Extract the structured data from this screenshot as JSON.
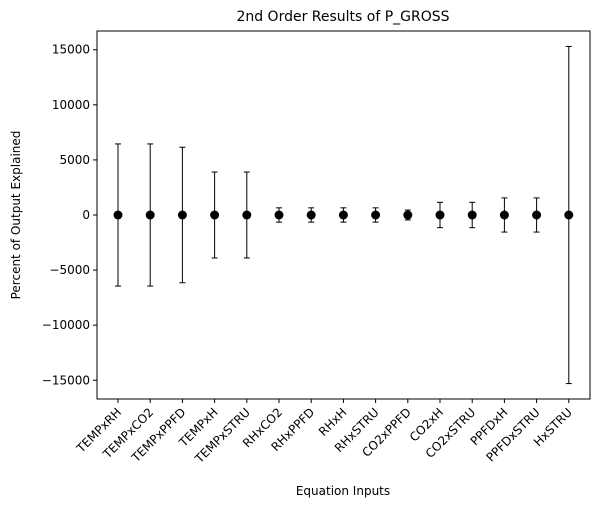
{
  "chart_data": {
    "type": "scatter",
    "title": "2nd Order Results of P_GROSS",
    "xlabel": "Equation Inputs",
    "ylabel": "Percent of Output Explained",
    "ylim": [
      -16700,
      16700
    ],
    "y_ticks": [
      -15000,
      -10000,
      -5000,
      0,
      5000,
      10000,
      15000
    ],
    "y_tick_labels": [
      "−15000",
      "−10000",
      "−5000",
      "0",
      "5000",
      "10000",
      "15000"
    ],
    "grid": false,
    "legend": "none",
    "marker_color": "#000000",
    "categories": [
      "TEMPxRH",
      "TEMPxCO2",
      "TEMPxPPFD",
      "TEMPxH",
      "TEMPxSTRU",
      "RHxCO2",
      "RHxPPFD",
      "RHxH",
      "RHxSTRU",
      "CO2xPPFD",
      "CO2xH",
      "CO2xSTRU",
      "PPFDxH",
      "PPFDxSTRU",
      "HxSTRU"
    ],
    "values": [
      0,
      0,
      0,
      0,
      0,
      0,
      0,
      0,
      0,
      0,
      0,
      0,
      0,
      0,
      0
    ],
    "errors": [
      6450,
      6450,
      6150,
      3900,
      3900,
      650,
      650,
      650,
      650,
      450,
      1150,
      1150,
      1550,
      1550,
      15300
    ]
  }
}
